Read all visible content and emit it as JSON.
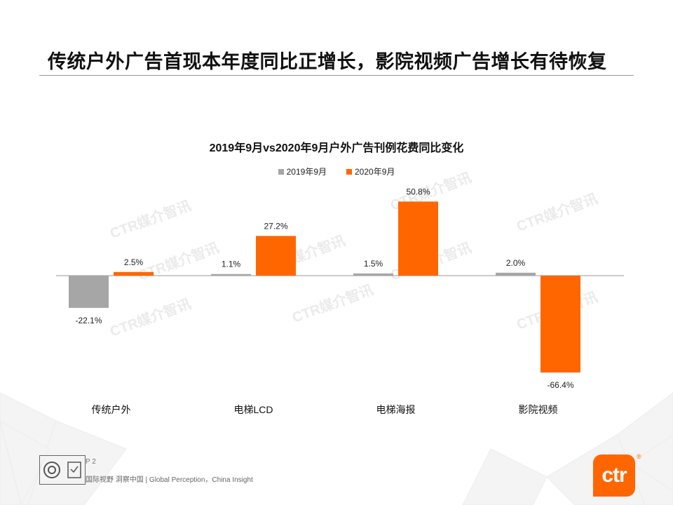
{
  "page": {
    "title": "传统户外广告首现本年度同比正增长，影院视频广告增长有待恢复",
    "page_number": "P 2",
    "tagline": "国际视野 洞察中国 | Global Perception，China Insight",
    "logo_text": "ctr",
    "logo_mark": "®",
    "watermark": "CTR媒介智讯",
    "cert_icons": [
      "sgs-cert-icon",
      "quality-mark-icon"
    ]
  },
  "colors": {
    "series_2019": "#a6a6a6",
    "series_2020": "#ff6600",
    "accent": "#ff6600"
  },
  "chart_data": {
    "type": "bar",
    "title": "2019年9月vs2020年9月户外广告刊例花费同比变化",
    "categories": [
      "传统户外",
      "电梯LCD",
      "电梯海报",
      "影院视频"
    ],
    "series": [
      {
        "name": "2019年9月",
        "values": [
          -22.1,
          1.1,
          1.5,
          2.0
        ],
        "labels": [
          "-22.1%",
          "1.1%",
          "1.5%",
          "2.0%"
        ]
      },
      {
        "name": "2020年9月",
        "values": [
          2.5,
          27.2,
          50.8,
          -66.4
        ],
        "labels": [
          "2.5%",
          "27.2%",
          "50.8%",
          "-66.4%"
        ]
      }
    ],
    "unit": "%",
    "legend_position": "top-center",
    "grid": false,
    "xlabel": "",
    "ylabel": ""
  }
}
